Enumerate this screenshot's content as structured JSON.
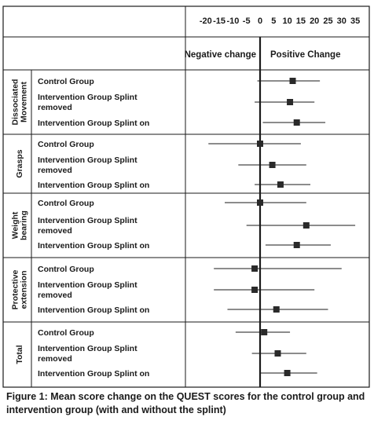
{
  "chart_data": {
    "type": "forest",
    "x_ticks": [
      "-20",
      "-15",
      "-10",
      "-5",
      "0",
      "5",
      "10",
      "15",
      "20",
      "25",
      "30",
      "35"
    ],
    "xlim": [
      -20,
      35
    ],
    "reference_line": 0,
    "direction_labels": {
      "negative": "Negative change",
      "positive": "Positive Change"
    },
    "groups": [
      {
        "label": "Dissociated Movement",
        "label_lines": [
          "Dissociated",
          "Movement"
        ],
        "rows": [
          {
            "lines": [
              "Control Group"
            ],
            "mean": 12,
            "low": -1,
            "high": 22
          },
          {
            "lines": [
              "Intervention Group Splint",
              "removed"
            ],
            "mean": 11,
            "low": -2,
            "high": 20
          },
          {
            "lines": [
              "Intervention Group Splint on"
            ],
            "mean": 13.5,
            "low": 1,
            "high": 24
          }
        ]
      },
      {
        "label": "Grasps",
        "label_lines": [
          "Grasps"
        ],
        "rows": [
          {
            "lines": [
              "Control Group"
            ],
            "mean": 0,
            "low": -19,
            "high": 15
          },
          {
            "lines": [
              "Intervention Group Splint",
              "removed"
            ],
            "mean": 4.5,
            "low": -8,
            "high": 17
          },
          {
            "lines": [
              "Intervention Group Splint on"
            ],
            "mean": 7.5,
            "low": -2,
            "high": 18.5
          }
        ]
      },
      {
        "label": "Weight bearing",
        "label_lines": [
          "Weight",
          "bearing"
        ],
        "rows": [
          {
            "lines": [
              "Control Group"
            ],
            "mean": 0,
            "low": -13,
            "high": 17
          },
          {
            "lines": [
              "Intervention Group Splint",
              "removed"
            ],
            "mean": 17,
            "low": -5,
            "high": 35
          },
          {
            "lines": [
              "Intervention Group Splint on"
            ],
            "mean": 13.5,
            "low": 2,
            "high": 26
          }
        ]
      },
      {
        "label": "Protective extension",
        "label_lines": [
          "Protective",
          "extension"
        ],
        "rows": [
          {
            "lines": [
              "Control Group"
            ],
            "mean": -2,
            "low": -17,
            "high": 30
          },
          {
            "lines": [
              "Intervention Group Splint",
              "removed"
            ],
            "mean": -2,
            "low": -17,
            "high": 20
          },
          {
            "lines": [
              "Intervention Group Splint on"
            ],
            "mean": 6,
            "low": -12,
            "high": 25
          }
        ]
      },
      {
        "label": "Total",
        "label_lines": [
          "Total"
        ],
        "rows": [
          {
            "lines": [
              "Control Group"
            ],
            "mean": 1.5,
            "low": -9,
            "high": 11
          },
          {
            "lines": [
              "Intervention Group Splint",
              "removed"
            ],
            "mean": 6.5,
            "low": -3,
            "high": 17
          },
          {
            "lines": [
              "Intervention Group Splint on"
            ],
            "mean": 10,
            "low": 0,
            "high": 21
          }
        ]
      }
    ]
  },
  "caption": "Figure 1: Mean score change on the QUEST scores for the control group and intervention group (with and without the splint)",
  "colors": {
    "ink": "#1a1a1a",
    "marker": "#2a2a2a",
    "background": "#ffffff"
  }
}
